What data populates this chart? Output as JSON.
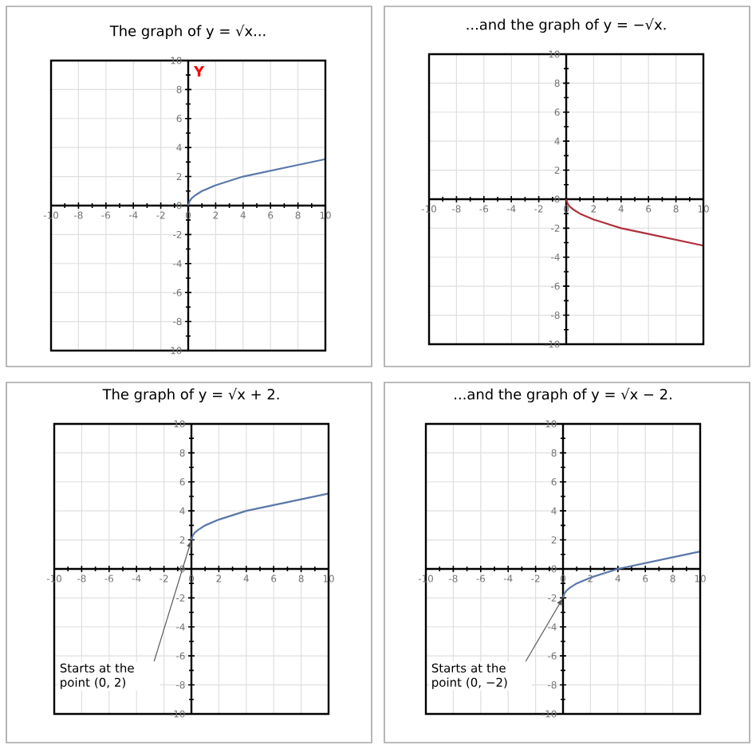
{
  "chart_data": [
    {
      "type": "line",
      "title": "The graph of y = √x...",
      "ylabel": "Y",
      "xlim": [
        -10,
        10
      ],
      "ylim": [
        -10,
        10
      ],
      "xticks": [
        -10,
        -8,
        -6,
        -4,
        -2,
        0,
        2,
        4,
        6,
        8,
        10
      ],
      "yticks": [
        -10,
        -8,
        -6,
        -4,
        -2,
        0,
        2,
        4,
        6,
        8,
        10
      ],
      "grid": true,
      "series": [
        {
          "color": "#5a78a8",
          "x": [
            0,
            0.1,
            0.25,
            0.5,
            1,
            2,
            3,
            4,
            6,
            8,
            10
          ],
          "values": [
            0,
            0.3,
            0.5,
            0.7,
            1,
            1.4,
            1.7,
            2,
            2.4,
            2.8,
            3.2
          ]
        }
      ]
    },
    {
      "type": "line",
      "title": "...and the graph of y = −√x.",
      "xlim": [
        -10,
        10
      ],
      "ylim": [
        -10,
        10
      ],
      "xticks": [
        -10,
        -8,
        -6,
        -4,
        -2,
        0,
        2,
        4,
        6,
        8,
        10
      ],
      "yticks": [
        -10,
        -8,
        -6,
        -4,
        -2,
        0,
        2,
        4,
        6,
        8,
        10
      ],
      "grid": true,
      "series": [
        {
          "color": "#b0303c",
          "x": [
            0,
            0.1,
            0.25,
            0.5,
            1,
            2,
            3,
            4,
            6,
            8,
            10
          ],
          "values": [
            0,
            -0.3,
            -0.5,
            -0.7,
            -1,
            -1.4,
            -1.7,
            -2,
            -2.4,
            -2.8,
            -3.2
          ]
        }
      ]
    },
    {
      "type": "line",
      "title": "The graph of y = √x + 2.",
      "xlim": [
        -10,
        10
      ],
      "ylim": [
        -10,
        10
      ],
      "xticks": [
        -10,
        -8,
        -6,
        -4,
        -2,
        0,
        2,
        4,
        6,
        8,
        10
      ],
      "yticks": [
        -10,
        -8,
        -6,
        -4,
        -2,
        0,
        2,
        4,
        6,
        8,
        10
      ],
      "grid": true,
      "series": [
        {
          "color": "#5a78a8",
          "x": [
            0,
            0.1,
            0.25,
            0.5,
            1,
            2,
            3,
            4,
            6,
            8,
            10
          ],
          "values": [
            2,
            2.3,
            2.5,
            2.7,
            3,
            3.4,
            3.7,
            4,
            4.4,
            4.8,
            5.2
          ]
        }
      ],
      "annotations": [
        "Starts at the point (0, 2)"
      ]
    },
    {
      "type": "line",
      "title": "...and the graph of y = √x − 2.",
      "xlim": [
        -10,
        10
      ],
      "ylim": [
        -10,
        10
      ],
      "xticks": [
        -10,
        -8,
        -6,
        -4,
        -2,
        0,
        2,
        4,
        6,
        8,
        10
      ],
      "yticks": [
        -10,
        -8,
        -6,
        -4,
        -2,
        0,
        2,
        4,
        6,
        8,
        10
      ],
      "grid": true,
      "series": [
        {
          "color": "#5a78a8",
          "x": [
            0,
            0.1,
            0.25,
            0.5,
            1,
            2,
            3,
            4,
            6,
            8,
            10
          ],
          "values": [
            -2,
            -1.7,
            -1.5,
            -1.3,
            -1,
            -0.6,
            -0.3,
            0,
            0.4,
            0.8,
            1.2
          ]
        }
      ],
      "annotations": [
        "Starts at the point (0, −2)"
      ]
    }
  ]
}
